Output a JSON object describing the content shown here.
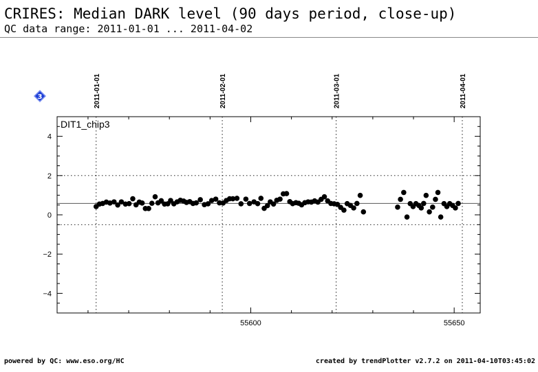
{
  "header": {
    "title": "CRIRES: Median DARK level (90 days period, close-up)",
    "subtitle": "QC data range: 2011-01-01 ... 2011-04-02"
  },
  "footer": {
    "left": "powered by QC: www.eso.org/HC",
    "right": "created by trendPlotter v2.7.2 on 2011-04-10T03:45:02"
  },
  "badge": {
    "label": "3",
    "color": "#1e3fd6",
    "icon": "diamond-icon"
  },
  "chart_data": {
    "type": "scatter",
    "panel_label": "DIT1_chip3",
    "xlim": [
      55552.4,
      55656.4
    ],
    "ylim": [
      -5,
      5
    ],
    "x_ticks": [
      55600,
      55650
    ],
    "y_ticks": [
      -4,
      -2,
      0,
      2,
      4
    ],
    "reference_lines": {
      "median": 0.58,
      "upper": 2.0,
      "lower": -0.5
    },
    "date_markers": [
      {
        "label": "2011-01-01",
        "mjd": 55562
      },
      {
        "label": "2011-02-01",
        "mjd": 55593
      },
      {
        "label": "2011-03-01",
        "mjd": 55621
      },
      {
        "label": "2011-04-01",
        "mjd": 55652
      }
    ],
    "series": [
      {
        "marker_color": "#000000",
        "x": [
          55562.0,
          55562.8,
          55563.6,
          55564.5,
          55565.4,
          55566.4,
          55567.3,
          55568.2,
          55569.2,
          55570.1,
          55571.0,
          55571.8,
          55572.6,
          55573.3,
          55574.1,
          55574.9,
          55575.7,
          55576.5,
          55577.2,
          55578.0,
          55578.8,
          55579.6,
          55580.3,
          55581.1,
          55581.9,
          55582.7,
          55583.5,
          55584.2,
          55585.0,
          55585.8,
          55586.6,
          55587.6,
          55588.6,
          55589.5,
          55590.4,
          55591.4,
          55592.3,
          55593.2,
          55594.0,
          55594.8,
          55595.6,
          55596.6,
          55597.6,
          55598.8,
          55599.7,
          55600.8,
          55601.7,
          55602.5,
          55603.3,
          55604.1,
          55604.8,
          55605.6,
          55606.4,
          55607.2,
          55608.0,
          55608.8,
          55609.6,
          55610.3,
          55611.1,
          55611.8,
          55612.5,
          55613.3,
          55614.1,
          55614.9,
          55615.7,
          55616.5,
          55617.3,
          55618.1,
          55618.9,
          55619.7,
          55620.5,
          55621.3,
          55622.1,
          55622.9,
          55623.7,
          55624.5,
          55625.3,
          55626.1,
          55626.9,
          55627.7,
          55636.1,
          55636.8,
          55637.6,
          55638.4,
          55639.2,
          55639.9,
          55640.6,
          55641.3,
          55641.9,
          55642.5,
          55643.1,
          55643.9,
          55644.7,
          55645.4,
          55646.0,
          55646.7,
          55647.5,
          55648.2,
          55648.9,
          55649.6,
          55650.3,
          55651.0
        ],
        "y": [
          0.42,
          0.55,
          0.58,
          0.65,
          0.6,
          0.66,
          0.5,
          0.66,
          0.55,
          0.57,
          0.82,
          0.51,
          0.65,
          0.6,
          0.32,
          0.32,
          0.59,
          0.92,
          0.61,
          0.72,
          0.55,
          0.56,
          0.73,
          0.56,
          0.66,
          0.74,
          0.7,
          0.63,
          0.67,
          0.58,
          0.61,
          0.77,
          0.52,
          0.56,
          0.73,
          0.8,
          0.61,
          0.6,
          0.73,
          0.82,
          0.82,
          0.84,
          0.56,
          0.8,
          0.58,
          0.66,
          0.57,
          0.84,
          0.33,
          0.47,
          0.66,
          0.55,
          0.74,
          0.8,
          1.07,
          1.08,
          0.67,
          0.57,
          0.62,
          0.59,
          0.51,
          0.62,
          0.66,
          0.65,
          0.71,
          0.65,
          0.79,
          0.92,
          0.71,
          0.58,
          0.56,
          0.53,
          0.38,
          0.24,
          0.57,
          0.48,
          0.35,
          0.58,
          0.99,
          0.15,
          0.39,
          0.79,
          1.14,
          -0.11,
          0.57,
          0.42,
          0.57,
          0.48,
          0.35,
          0.58,
          0.99,
          0.15,
          0.39,
          0.79,
          1.14,
          -0.11,
          0.57,
          0.42,
          0.57,
          0.48,
          0.35,
          0.58
        ]
      }
    ]
  }
}
